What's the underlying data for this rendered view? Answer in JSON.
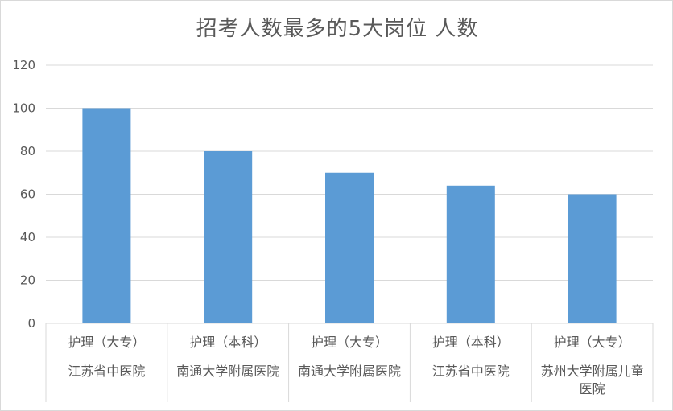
{
  "chart_data": {
    "type": "bar",
    "title": "招考人数最多的5大岗位 人数",
    "categories": [
      {
        "line1": "护理（大专）",
        "line2": "江苏省中医院",
        "line3": ""
      },
      {
        "line1": "护理（本科）",
        "line2": "南通大学附属医院",
        "line3": ""
      },
      {
        "line1": "护理（大专）",
        "line2": "南通大学附属医院",
        "line3": ""
      },
      {
        "line1": "护理（本科）",
        "line2": "江苏省中医院",
        "line3": ""
      },
      {
        "line1": "护理（大专）",
        "line2": "苏州大学附属儿童",
        "line3": "医院"
      }
    ],
    "values": [
      100,
      80,
      70,
      64,
      60
    ],
    "ylim": [
      0,
      120
    ],
    "yticks": [
      0,
      20,
      40,
      60,
      80,
      100,
      120
    ],
    "grid": true,
    "legend": "none",
    "xlabel": "",
    "ylabel": "",
    "colors": {
      "bar": "#5b9bd5",
      "grid": "#d9d9d9",
      "text": "#595959"
    }
  }
}
